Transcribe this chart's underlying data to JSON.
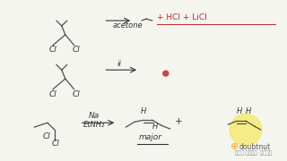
{
  "bg_color": "#f5f5f0",
  "title_color": "#222222",
  "line_color": "#333333",
  "arrow_color": "#333333",
  "text_color": "#333333",
  "red_color": "#cc2222",
  "highlight_color": "#f5e642",
  "doubtnut_orange": "#f5a623",
  "reaction1": {
    "arrow_label": "acetone",
    "products": "→∞  + HCl + LiCl",
    "underline": true
  },
  "reaction2": {
    "arrow_label": "ii",
    "product_dot": true
  },
  "reaction3": {
    "reagent_line1": "Na",
    "reagent_line2": "EtNH₂",
    "major_label": "major"
  }
}
